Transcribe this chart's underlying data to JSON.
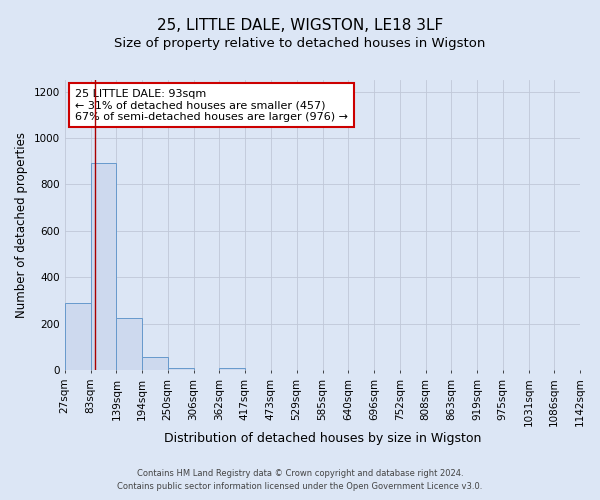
{
  "title1": "25, LITTLE DALE, WIGSTON, LE18 3LF",
  "title2": "Size of property relative to detached houses in Wigston",
  "xlabel": "Distribution of detached houses by size in Wigston",
  "ylabel": "Number of detached properties",
  "bin_edges": [
    27,
    83,
    139,
    194,
    250,
    306,
    362,
    417,
    473,
    529,
    585,
    640,
    696,
    752,
    808,
    863,
    919,
    975,
    1031,
    1086,
    1142
  ],
  "bar_heights": [
    290,
    893,
    225,
    55,
    10,
    0,
    10,
    0,
    0,
    0,
    0,
    0,
    0,
    0,
    0,
    0,
    0,
    0,
    0,
    0
  ],
  "bar_color": "#cdd9ee",
  "bar_edge_color": "#6699cc",
  "property_size": 93,
  "vline_color": "#aa0000",
  "annotation_line1": "25 LITTLE DALE: 93sqm",
  "annotation_line2": "← 31% of detached houses are smaller (457)",
  "annotation_line3": "67% of semi-detached houses are larger (976) →",
  "annotation_box_edge_color": "#cc0000",
  "annotation_box_face_color": "white",
  "ylim": [
    0,
    1250
  ],
  "yticks": [
    0,
    200,
    400,
    600,
    800,
    1000,
    1200
  ],
  "bg_color": "#dce6f5",
  "grid_color": "#c0c8d8",
  "footnote1": "Contains HM Land Registry data © Crown copyright and database right 2024.",
  "footnote2": "Contains public sector information licensed under the Open Government Licence v3.0.",
  "title1_fontsize": 11,
  "title2_fontsize": 9.5,
  "xlabel_fontsize": 9,
  "ylabel_fontsize": 8.5,
  "tick_fontsize": 7.5,
  "annotation_fontsize": 8,
  "footnote_fontsize": 6
}
